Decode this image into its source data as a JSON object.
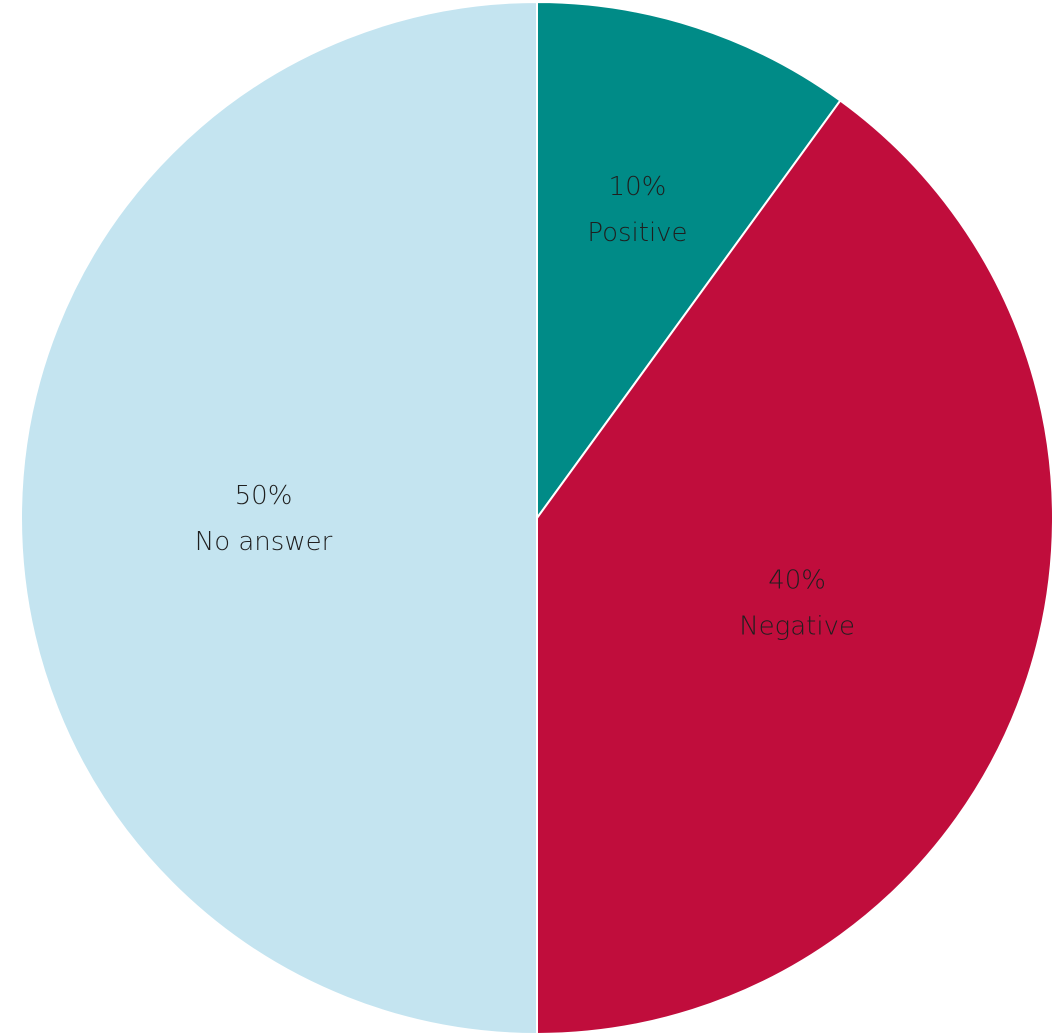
{
  "chart_data": {
    "type": "pie",
    "title": "",
    "start_angle_deg": 0,
    "direction": "clockwise",
    "slices": [
      {
        "label": "Positive",
        "value": 10,
        "display": "10%",
        "color": "#008b87"
      },
      {
        "label": "Negative",
        "value": 40,
        "display": "40%",
        "color": "#c00d3c"
      },
      {
        "label": "No answer",
        "value": 50,
        "display": "50%",
        "color": "#c4e4f0"
      }
    ],
    "legend": "none",
    "data_labels": "inside"
  }
}
